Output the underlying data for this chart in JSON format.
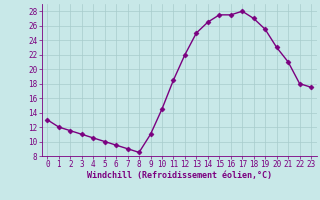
{
  "x": [
    0,
    1,
    2,
    3,
    4,
    5,
    6,
    7,
    8,
    9,
    10,
    11,
    12,
    13,
    14,
    15,
    16,
    17,
    18,
    19,
    20,
    21,
    22,
    23
  ],
  "y": [
    13,
    12,
    11.5,
    11,
    10.5,
    10,
    9.5,
    9,
    8.5,
    11,
    14.5,
    18.5,
    22,
    25,
    26.5,
    27.5,
    27.5,
    28,
    27,
    25.5,
    23,
    21,
    18,
    17.5
  ],
  "line_color": "#7B0080",
  "marker": "D",
  "markersize": 2.5,
  "linewidth": 1.0,
  "xlim": [
    -0.5,
    23.5
  ],
  "ylim": [
    8,
    29
  ],
  "yticks": [
    8,
    10,
    12,
    14,
    16,
    18,
    20,
    22,
    24,
    26,
    28
  ],
  "xticks": [
    0,
    1,
    2,
    3,
    4,
    5,
    6,
    7,
    8,
    9,
    10,
    11,
    12,
    13,
    14,
    15,
    16,
    17,
    18,
    19,
    20,
    21,
    22,
    23
  ],
  "xlabel": "Windchill (Refroidissement éolien,°C)",
  "bg_color": "#c8e8e8",
  "grid_color": "#a8cccc",
  "axis_label_color": "#7B0080",
  "tick_color": "#7B0080",
  "tick_fontsize": 5.5,
  "xlabel_fontsize": 6.0
}
